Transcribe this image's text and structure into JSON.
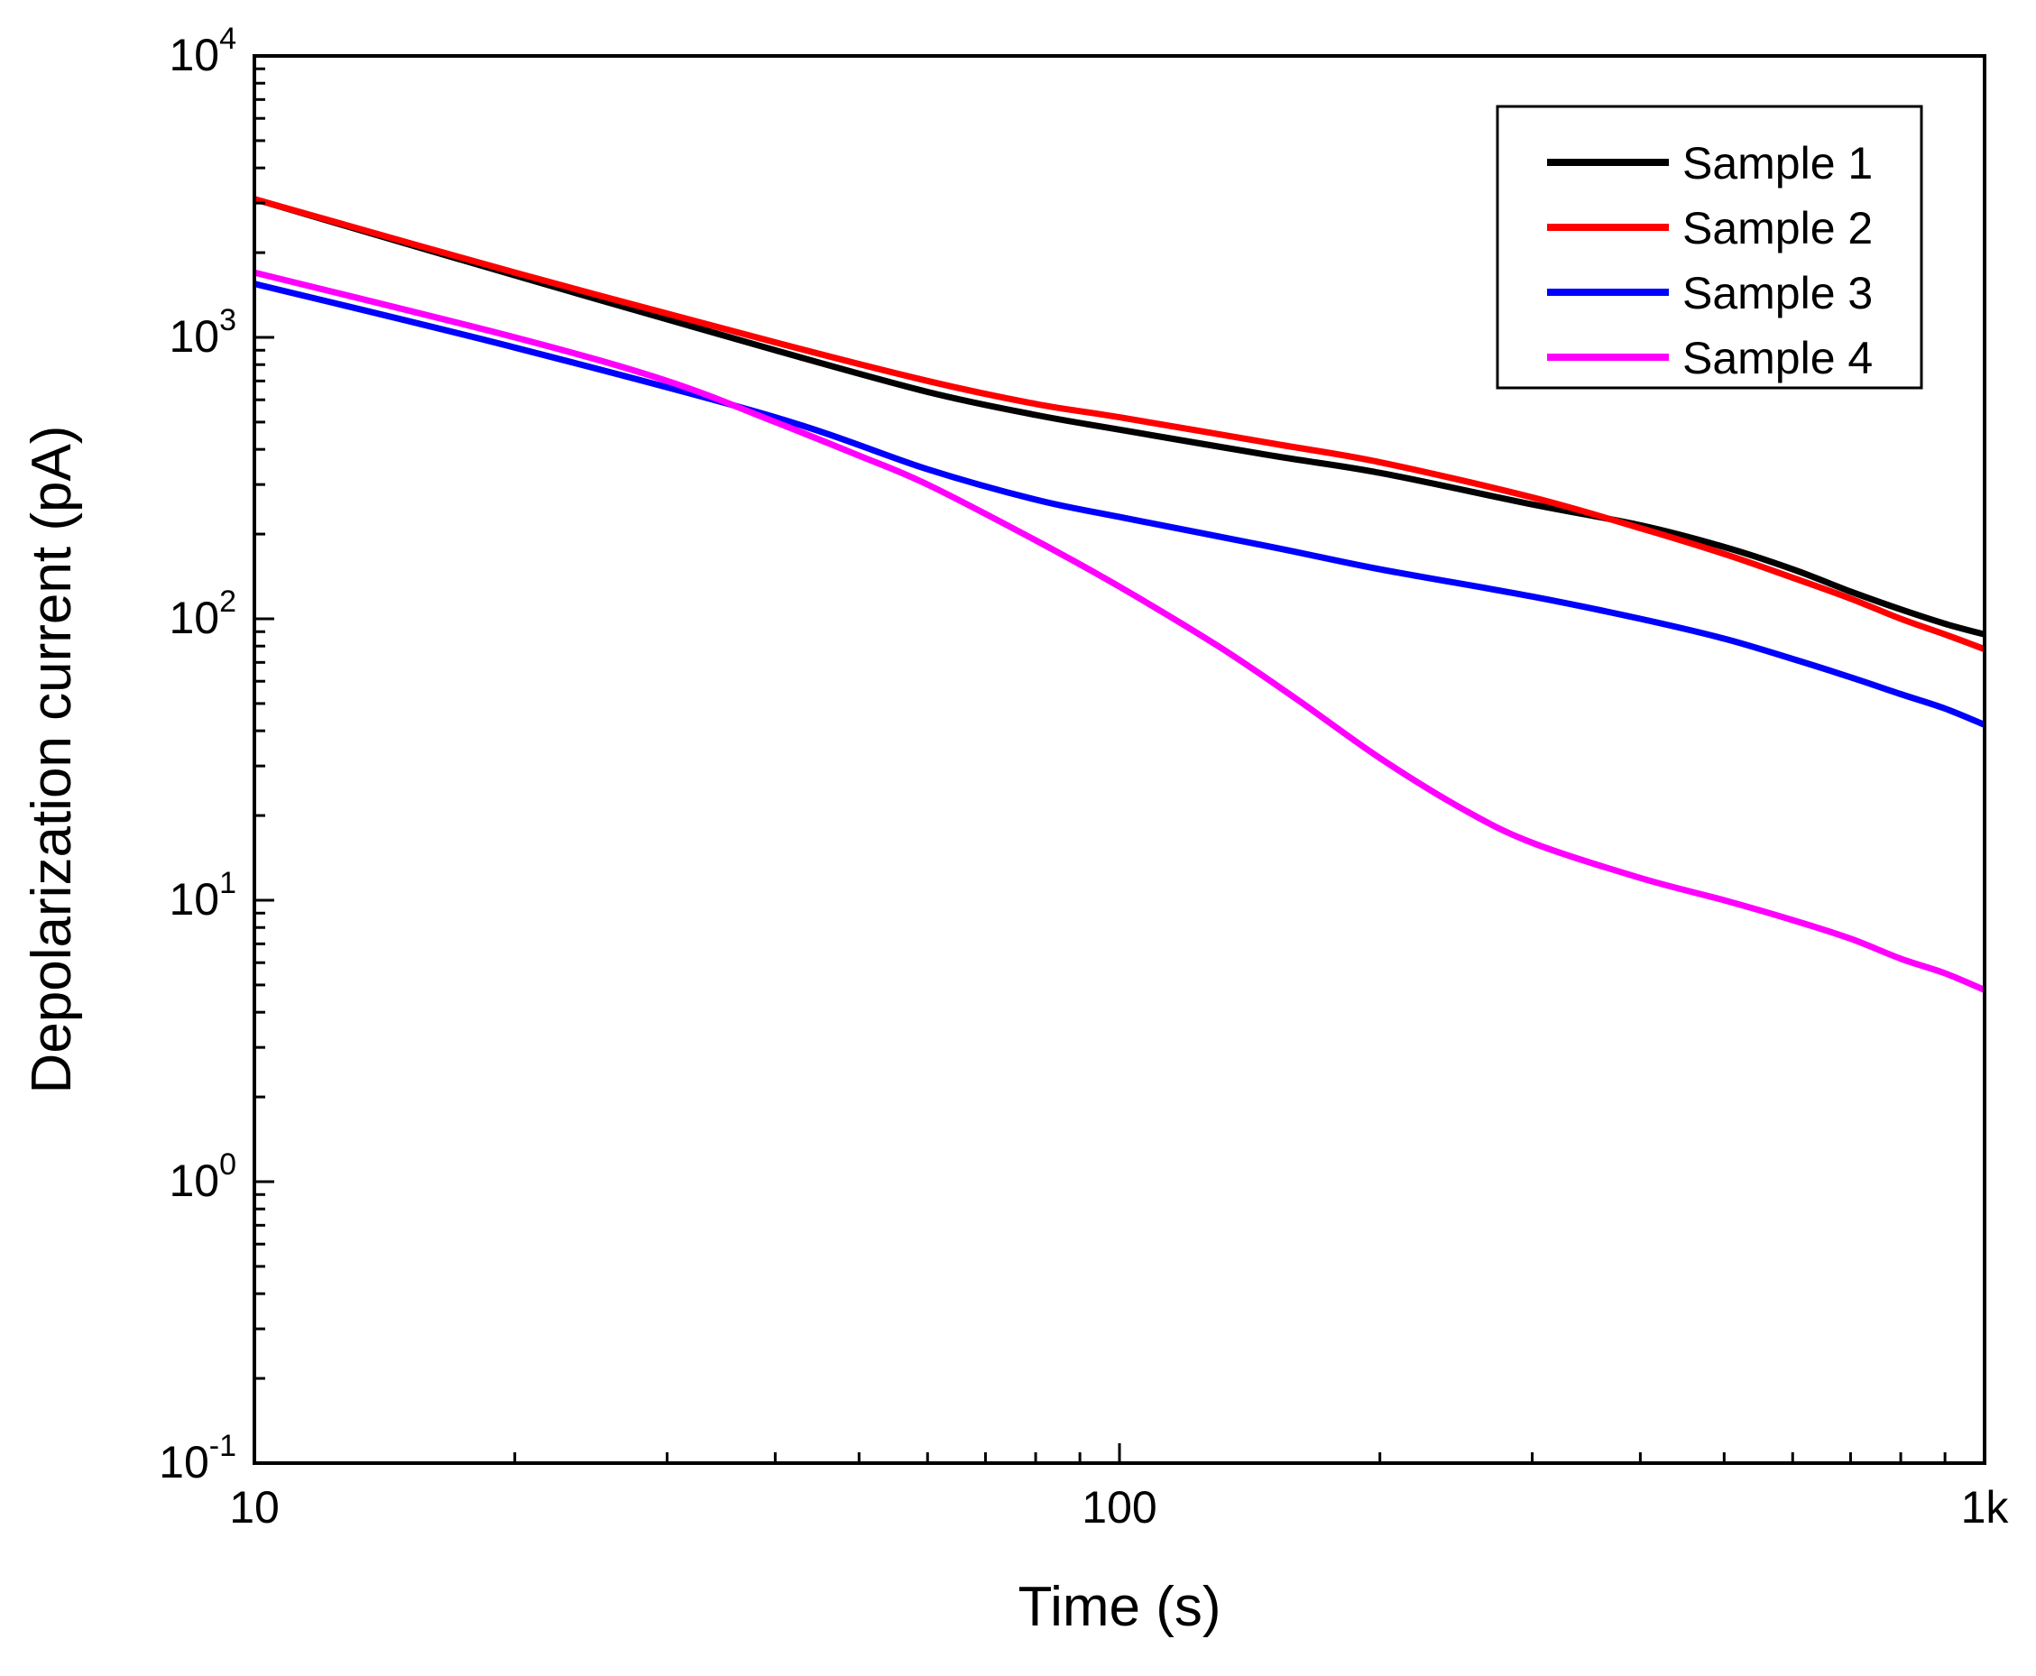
{
  "chart_data": {
    "type": "line",
    "title": "",
    "xlabel": "Time (s)",
    "ylabel": "Depolarization current (pA)",
    "xscale": "log",
    "yscale": "log",
    "xlim": [
      10,
      1000
    ],
    "ylim": [
      0.1,
      10000
    ],
    "x_ticks": [
      {
        "value": 10,
        "label": "10"
      },
      {
        "value": 100,
        "label": "100"
      },
      {
        "value": 1000,
        "label": "1k"
      }
    ],
    "y_ticks": [
      {
        "value": 0.1,
        "base": "10",
        "exp": "-1"
      },
      {
        "value": 1,
        "base": "10",
        "exp": "0"
      },
      {
        "value": 10,
        "base": "10",
        "exp": "1"
      },
      {
        "value": 100,
        "base": "10",
        "exp": "2"
      },
      {
        "value": 1000,
        "base": "10",
        "exp": "3"
      },
      {
        "value": 10000,
        "base": "10",
        "exp": "4"
      }
    ],
    "grid": false,
    "legend_position": "top-right",
    "series": [
      {
        "name": "Sample 1",
        "color": "#000000",
        "x": [
          10,
          20,
          40,
          60,
          80,
          100,
          150,
          200,
          300,
          400,
          500,
          600,
          700,
          800,
          900,
          1000
        ],
        "y": [
          3100,
          1660,
          900,
          640,
          530,
          470,
          380,
          330,
          255,
          215,
          180,
          150,
          125,
          108,
          96,
          88
        ]
      },
      {
        "name": "Sample 2",
        "color": "#ff0000",
        "x": [
          10,
          20,
          40,
          60,
          80,
          100,
          150,
          200,
          300,
          400,
          500,
          600,
          700,
          800,
          900,
          1000
        ],
        "y": [
          3100,
          1700,
          960,
          700,
          580,
          520,
          420,
          360,
          270,
          210,
          170,
          140,
          118,
          100,
          88,
          78
        ]
      },
      {
        "name": "Sample 3",
        "color": "#0000ff",
        "x": [
          10,
          20,
          40,
          60,
          80,
          100,
          150,
          200,
          300,
          400,
          500,
          600,
          700,
          800,
          900,
          1000
        ],
        "y": [
          1550,
          920,
          520,
          340,
          265,
          230,
          180,
          150,
          120,
          100,
          85,
          72,
          62,
          54,
          48,
          42
        ]
      },
      {
        "name": "Sample 4",
        "color": "#ff00ff",
        "x": [
          10,
          20,
          30,
          40,
          50,
          60,
          80,
          100,
          130,
          160,
          200,
          250,
          300,
          400,
          500,
          600,
          700,
          800,
          900,
          1000
        ],
        "y": [
          1700,
          1000,
          700,
          500,
          380,
          300,
          190,
          130,
          80,
          52,
          32,
          21,
          16,
          12,
          10,
          8.5,
          7.3,
          6.2,
          5.5,
          4.8
        ]
      }
    ]
  }
}
